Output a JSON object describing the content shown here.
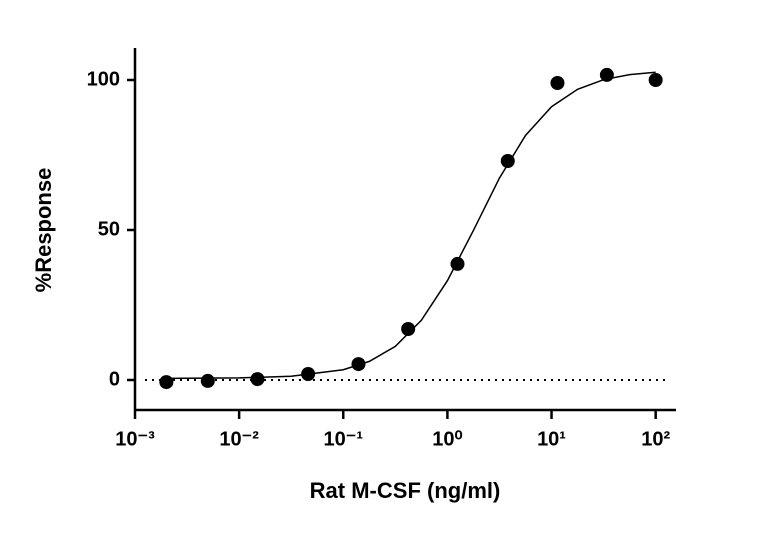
{
  "chart_data": {
    "type": "scatter",
    "x_label": "Rat M-CSF (ng/ml)",
    "y_label": "%Response",
    "x_scale": "log",
    "xlim": [
      0.001,
      150
    ],
    "ylim": [
      -10,
      110
    ],
    "xticks": [
      {
        "value": 0.001,
        "label": "10⁻³"
      },
      {
        "value": 0.01,
        "label": "10⁻²"
      },
      {
        "value": 0.1,
        "label": "10⁻¹"
      },
      {
        "value": 1,
        "label": "10⁰"
      },
      {
        "value": 10,
        "label": "10¹"
      },
      {
        "value": 100,
        "label": "10²"
      }
    ],
    "yticks": [
      0,
      50,
      100
    ],
    "color": "#000000",
    "x": [
      0.002,
      0.005,
      0.015,
      0.046,
      0.14,
      0.42,
      1.25,
      3.8,
      11.4,
      34,
      100
    ],
    "values": [
      -0.7,
      -0.3,
      0.3,
      2,
      5.3,
      17,
      38.7,
      73,
      99,
      101.7,
      100
    ],
    "fit": {
      "x": [
        0.002,
        0.01,
        0.0316,
        0.1,
        0.178,
        0.316,
        0.562,
        1,
        1.78,
        3.16,
        5.62,
        10,
        17.8,
        31.6,
        56.2,
        100
      ],
      "values": [
        0.53,
        0.69,
        1.25,
        3.42,
        6.2,
        11.2,
        19.9,
        33.1,
        49.9,
        67.3,
        81.5,
        91.1,
        96.9,
        100.1,
        101.8,
        102.6
      ]
    },
    "reference_line": 0
  }
}
